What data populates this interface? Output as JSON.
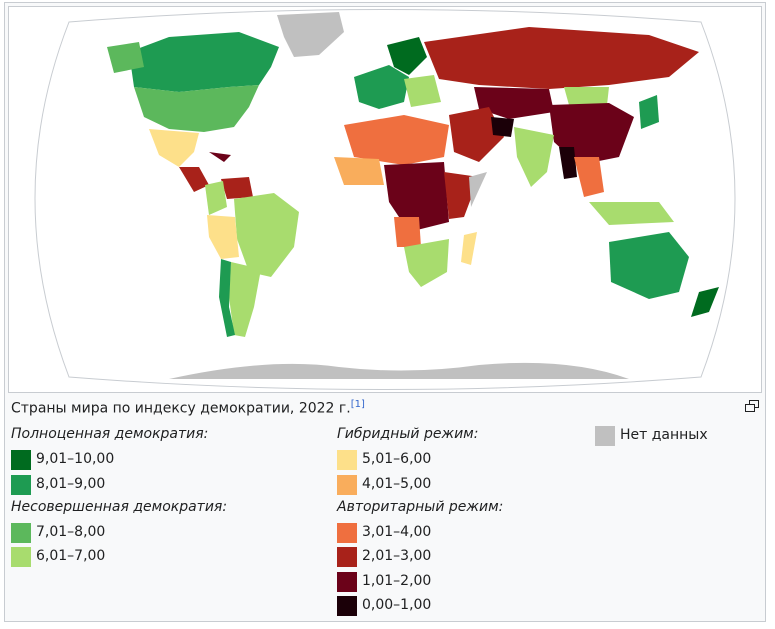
{
  "caption": {
    "text": "Страны мира по индексу демократии, 2022 г.",
    "ref": "[1]"
  },
  "legend": {
    "groups": [
      {
        "title": "Полноценная демократия:",
        "items": [
          {
            "label": "9,01–10,00",
            "color": "#006b1f"
          },
          {
            "label": "8,01–9,00",
            "color": "#1e9b52"
          }
        ]
      },
      {
        "title": "Несовершенная демократия:",
        "items": [
          {
            "label": "7,01–8,00",
            "color": "#5cb85c"
          },
          {
            "label": "6,01–7,00",
            "color": "#a8dc6e"
          }
        ]
      },
      {
        "title": "Гибридный режим:",
        "items": [
          {
            "label": "5,01–6,00",
            "color": "#fde08a"
          },
          {
            "label": "4,01–5,00",
            "color": "#f9ad5c"
          }
        ]
      },
      {
        "title": "Авторитарный режим:",
        "items": [
          {
            "label": "3,01–4,00",
            "color": "#ef6f3f"
          },
          {
            "label": "2,01–3,00",
            "color": "#a8221a"
          },
          {
            "label": "1,01–2,00",
            "color": "#6b0219"
          },
          {
            "label": "0,00–1,00",
            "color": "#1b0008"
          }
        ]
      }
    ],
    "no_data": {
      "label": "Нет данных",
      "color": "#c0c0c0"
    }
  },
  "icons": {
    "enlarge": "enlarge-icon"
  }
}
